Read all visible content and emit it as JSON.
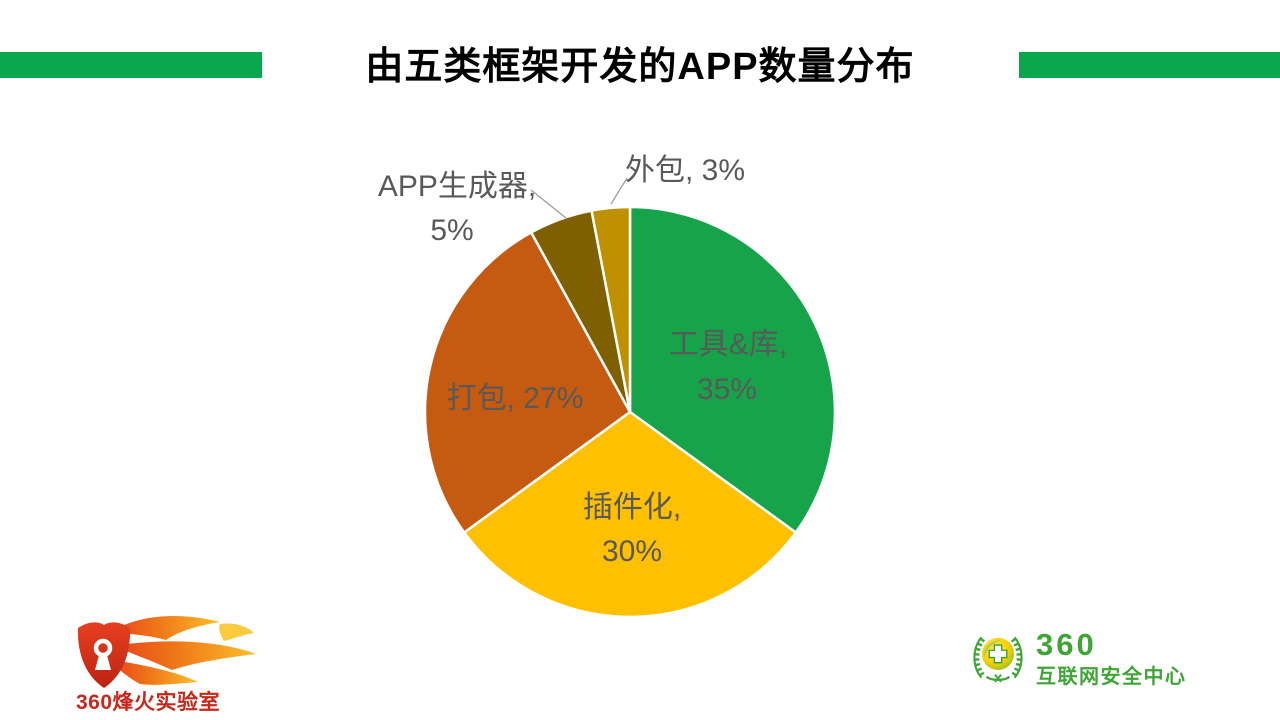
{
  "chart_data": {
    "type": "pie",
    "title": "由五类框架开发的APP数量分布",
    "categories": [
      "工具&库",
      "插件化",
      "打包",
      "APP生成器",
      "外包"
    ],
    "values": [
      35,
      30,
      27,
      5,
      3
    ],
    "unit": "%",
    "labels": [
      "工具&库, 35%",
      "插件化, 30%",
      "打包, 27%",
      "APP生成器, 5%",
      "外包, 3%"
    ],
    "colors": [
      "#17A34A",
      "#FFC000",
      "#C55A11",
      "#7F6000",
      "#BF9000"
    ],
    "label_color": "#595959",
    "start_angle_deg": 0,
    "direction": "clockwise",
    "legend": "none",
    "grid": "off"
  },
  "header": {
    "accent_bar_color": "#0AA84E"
  },
  "footer": {
    "left_logo": {
      "text": "360烽火实验室",
      "color": "#C5281C"
    },
    "right_logo": {
      "name": "360",
      "subtitle": "互联网安全中心",
      "color": "#3FA535"
    }
  }
}
